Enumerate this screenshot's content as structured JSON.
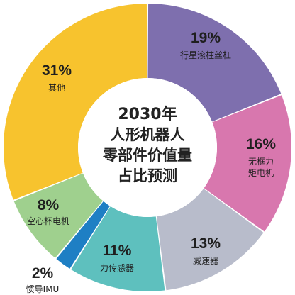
{
  "chart_data": {
    "type": "pie",
    "style": "donut",
    "title_lines": [
      "2030年",
      "人形机器人",
      "零部件价值量",
      "占比预测"
    ],
    "slices": [
      {
        "label": "行星滚柱丝杠",
        "value": 19,
        "display": "19%",
        "color": "#7E6FAE"
      },
      {
        "label": "无框力矩电机",
        "value": 16,
        "display": "16%",
        "color": "#D877AE"
      },
      {
        "label": "减速器",
        "value": 13,
        "display": "13%",
        "color": "#B8BCCB"
      },
      {
        "label": "力传感器",
        "value": 11,
        "display": "11%",
        "color": "#5EC0BE"
      },
      {
        "label": "惯导IMU",
        "value": 2,
        "display": "2%",
        "color": "#1E7FC4"
      },
      {
        "label": "空心杯电机",
        "value": 8,
        "display": "8%",
        "color": "#9FD08E"
      },
      {
        "label": "其他",
        "value": 31,
        "display": "31%",
        "color": "#F7C32E"
      }
    ]
  }
}
